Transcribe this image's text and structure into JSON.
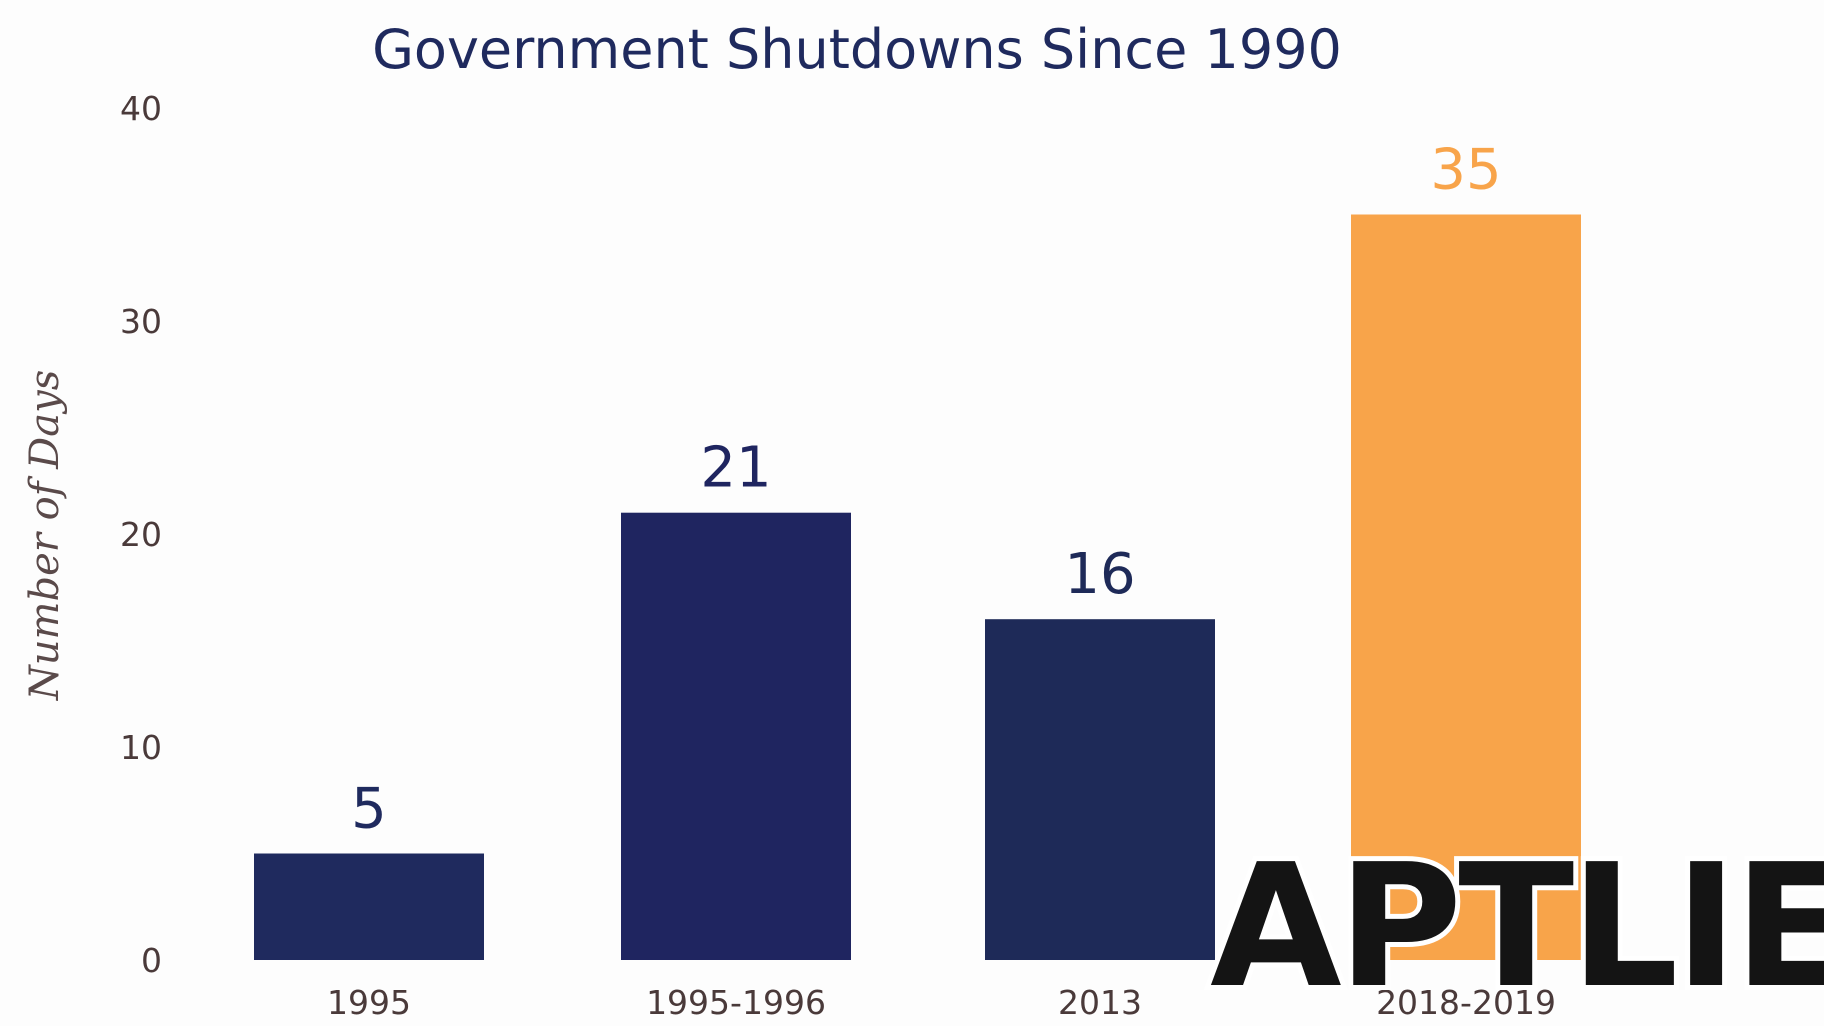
{
  "chart_data": {
    "type": "bar",
    "title": "Government Shutdowns Since 1990",
    "ylabel": "Number of Days",
    "xlabel": "",
    "categories": [
      "1995",
      "1995-1996",
      "2013",
      "2018-2019"
    ],
    "values": [
      5,
      21,
      16,
      35
    ],
    "value_labels": [
      "5",
      "21",
      "16",
      "35"
    ],
    "ylim": [
      0,
      40
    ],
    "yticks": [
      0,
      10,
      20,
      30,
      40
    ],
    "grid": false,
    "bar_colors": [
      "#1f2a5e",
      "#1f2560",
      "#1e2a58",
      "#f8a44a"
    ]
  },
  "watermark": {
    "text": "APTLIE"
  },
  "colors": {
    "navy": "#1f2a5e",
    "orange": "#f8a44a",
    "background": "#fdfdfd"
  }
}
